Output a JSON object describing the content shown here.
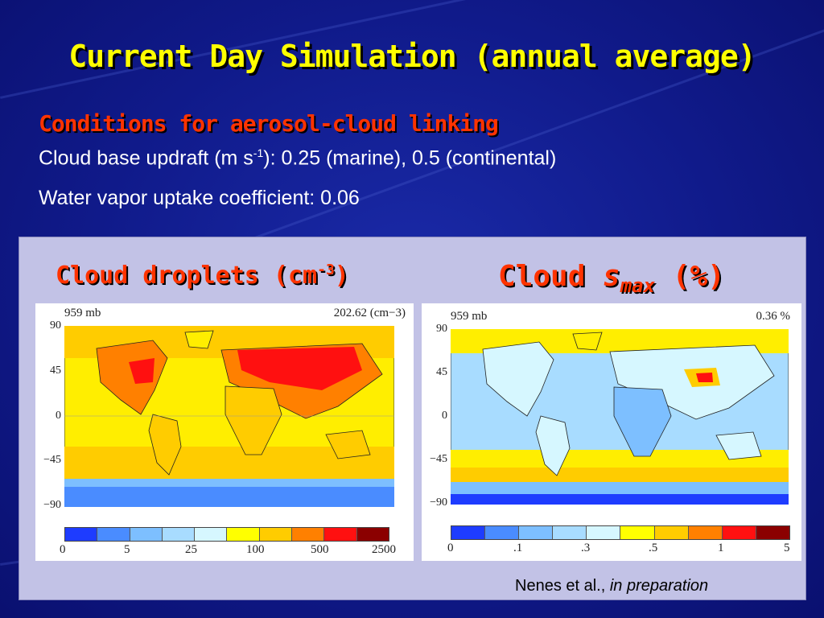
{
  "slide": {
    "title": "Current Day Simulation (annual average)",
    "conditions_heading": "Conditions for aerosol-cloud linking",
    "updraft_prefix": "Cloud base updraft (m s",
    "updraft_sup": "-1",
    "updraft_suffix": "): 0.25 (marine), 0.5 (continental)",
    "uptake_line": "Water vapor uptake coefficient: 0.06"
  },
  "panel_left": {
    "title_main": "Cloud droplets (cm",
    "title_sup": "-3",
    "title_close": ")",
    "level_label": "959  mb",
    "mean_label": "202.62  (cm−3)",
    "y_ticks": [
      "90",
      "45",
      "0",
      "−45",
      "−90"
    ],
    "colorbar_labels": [
      "0",
      "5",
      "25",
      "100",
      "500",
      "2500"
    ],
    "colorbar_colors": [
      "#1e3cff",
      "#4a8cff",
      "#7dbfff",
      "#a8dcff",
      "#d6f7ff",
      "#ffff00",
      "#ffcc00",
      "#ff8000",
      "#ff1010",
      "#8b0000"
    ]
  },
  "panel_right": {
    "title_main": "Cloud ",
    "title_s": "s",
    "title_sub": "max",
    "title_pct": " (%)",
    "level_label": "959  mb",
    "mean_label": "0.36  %",
    "y_ticks": [
      "90",
      "45",
      "0",
      "−45",
      "−90"
    ],
    "colorbar_labels": [
      "0",
      ".1",
      ".3",
      ".5",
      "1",
      "5"
    ],
    "colorbar_colors": [
      "#1e3cff",
      "#4a8cff",
      "#7dbfff",
      "#a8dcff",
      "#d6f7ff",
      "#ffff00",
      "#ffcc00",
      "#ff8000",
      "#ff1010",
      "#8b0000"
    ]
  },
  "credit": {
    "authors": "Nenes et al., ",
    "status": "in preparation"
  }
}
